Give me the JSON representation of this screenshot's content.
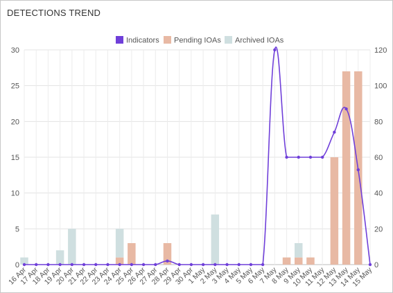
{
  "panel": {
    "title": "DETECTIONS TREND"
  },
  "chart_data": {
    "type": "bar",
    "categories": [
      "16 Apr",
      "17 Apr",
      "18 Apr",
      "19 Apr",
      "20 Apr",
      "21 Apr",
      "22 Apr",
      "23 Apr",
      "24 Apr",
      "25 Apr",
      "26 Apr",
      "27 Apr",
      "28 Apr",
      "29 Apr",
      "30 Apr",
      "1 May",
      "2 May",
      "3 May",
      "4 May",
      "5 May",
      "6 May",
      "7 May",
      "8 May",
      "9 May",
      "10 May",
      "11 May",
      "12 May",
      "13 May",
      "14 May",
      "15 May"
    ],
    "left_axis": {
      "ylim": [
        0,
        30
      ],
      "ticks": [
        "0",
        "5",
        "10",
        "15",
        "20",
        "25",
        "30"
      ]
    },
    "right_axis": {
      "ylim": [
        0,
        120
      ],
      "ticks": [
        "0",
        "20",
        "40",
        "60",
        "80",
        "100",
        "120"
      ]
    },
    "grid": true,
    "legend_position": "top-center",
    "series": [
      {
        "name": "Indicators",
        "type": "line",
        "axis": "right",
        "color": "#6f3fd9",
        "values": [
          0,
          0,
          0,
          0,
          0,
          0,
          0,
          0,
          0,
          0,
          0,
          0,
          2,
          0,
          0,
          0,
          0,
          0,
          0,
          0,
          0,
          120,
          60,
          60,
          60,
          60,
          74,
          87,
          53,
          0
        ]
      },
      {
        "name": "Pending IOAs",
        "type": "bar",
        "axis": "left",
        "color": "#e8b9a4",
        "values": [
          0,
          0,
          0,
          0,
          0,
          0,
          0,
          0,
          1,
          3,
          0,
          0,
          3,
          0,
          0,
          0,
          0,
          0,
          0,
          0,
          0,
          0,
          1,
          1,
          1,
          0,
          15,
          27,
          27,
          0
        ]
      },
      {
        "name": "Archived IOAs",
        "type": "bar",
        "axis": "left",
        "color": "#cfdfe0",
        "values": [
          1,
          0,
          0,
          2,
          5,
          0,
          0,
          0,
          4,
          0,
          0,
          0,
          0,
          0,
          0,
          0,
          7,
          0,
          0,
          0,
          0,
          0,
          0,
          2,
          0,
          0,
          0,
          0,
          0,
          0
        ]
      }
    ]
  }
}
